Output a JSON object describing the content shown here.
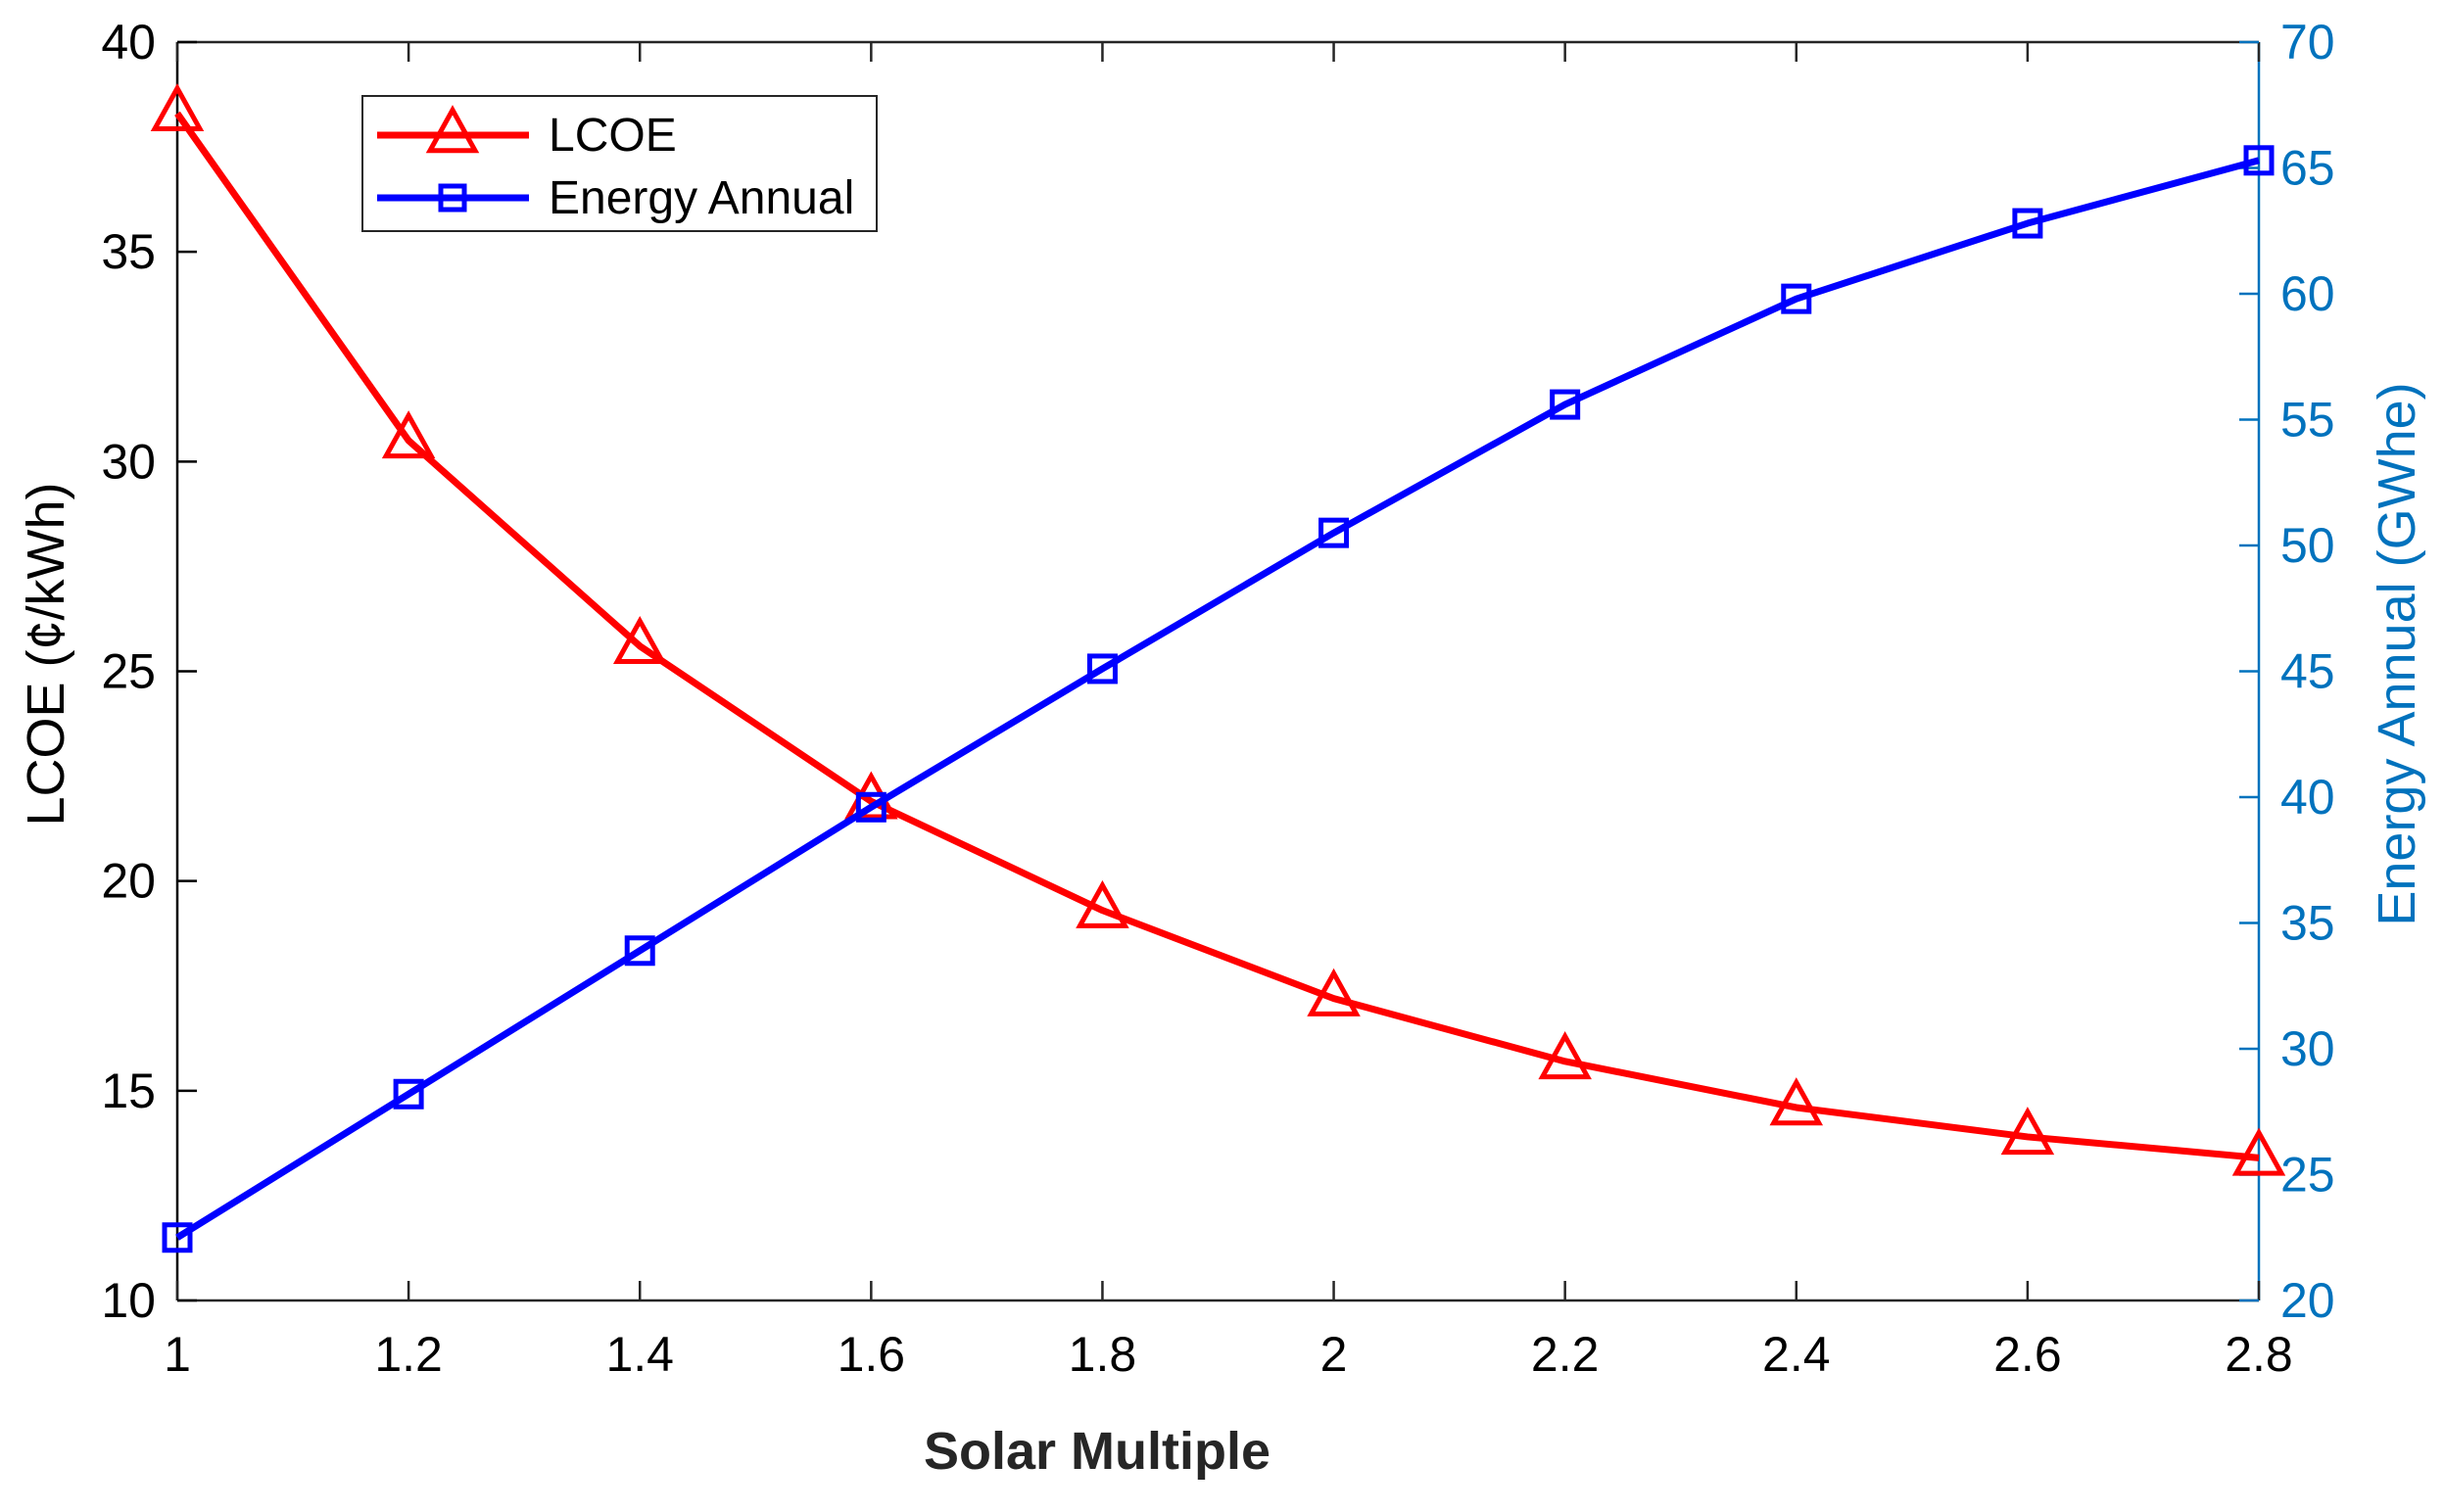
{
  "chart_data": {
    "type": "line",
    "title": "",
    "xlabel": "Solar Multiple",
    "ylabel_left": "LCOE (¢/kWh)",
    "ylabel_right": "Energy Annual (GWhe)",
    "x": [
      1,
      1.2,
      1.4,
      1.6,
      1.8,
      2,
      2.2,
      2.4,
      2.6,
      2.8
    ],
    "xlim": [
      1,
      2.8
    ],
    "xticks": [
      "1",
      "1.2",
      "1.4",
      "1.6",
      "1.8",
      "2",
      "2.2",
      "2.4",
      "2.6",
      "2.8"
    ],
    "ylim_left": [
      10,
      40
    ],
    "yticks_left": [
      "10",
      "15",
      "20",
      "25",
      "30",
      "35",
      "40"
    ],
    "ylim_right": [
      20,
      70
    ],
    "yticks_right": [
      "20",
      "25",
      "30",
      "35",
      "40",
      "45",
      "50",
      "55",
      "60",
      "65",
      "70"
    ],
    "grid": false,
    "legend_position": "top-left",
    "series": [
      {
        "name": "LCOE",
        "axis": "left",
        "color": "#ff0000",
        "marker": "triangle",
        "values": [
          38.3,
          30.5,
          25.6,
          21.9,
          19.3,
          17.2,
          15.7,
          14.6,
          13.9,
          13.4
        ]
      },
      {
        "name": "Energy Annual",
        "axis": "right",
        "color": "#0000ff",
        "marker": "square",
        "values": [
          22.5,
          28.2,
          33.9,
          39.6,
          45.1,
          50.5,
          55.6,
          59.8,
          62.8,
          65.3
        ]
      }
    ],
    "colors": {
      "left_axis": "#000000",
      "right_axis": "#0072bd"
    }
  }
}
